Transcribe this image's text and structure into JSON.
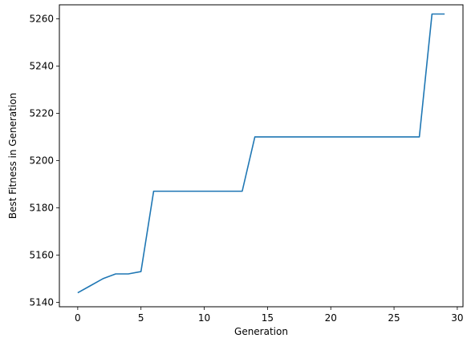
{
  "chart_data": {
    "type": "line",
    "title": "",
    "xlabel": "Generation",
    "ylabel": "Best Fitness in Generation",
    "xlim": [
      -1.45,
      30.45
    ],
    "ylim": [
      5138.1,
      5265.9
    ],
    "xticks": [
      0,
      5,
      10,
      15,
      20,
      25,
      30
    ],
    "yticks": [
      5140,
      5160,
      5180,
      5200,
      5220,
      5240,
      5260
    ],
    "grid": false,
    "legend": "none",
    "series": [
      {
        "color": "#1f77b4",
        "x": [
          0,
          1,
          2,
          3,
          4,
          5,
          6,
          7,
          8,
          9,
          10,
          11,
          12,
          13,
          14,
          15,
          16,
          17,
          18,
          19,
          20,
          21,
          22,
          23,
          24,
          25,
          26,
          27,
          28,
          29
        ],
        "y": [
          5144,
          5147,
          5150,
          5152,
          5152,
          5153,
          5187,
          5187,
          5187,
          5187,
          5187,
          5187,
          5187,
          5187,
          5210,
          5210,
          5210,
          5210,
          5210,
          5210,
          5210,
          5210,
          5210,
          5210,
          5210,
          5210,
          5210,
          5210,
          5262,
          5262
        ]
      }
    ]
  }
}
